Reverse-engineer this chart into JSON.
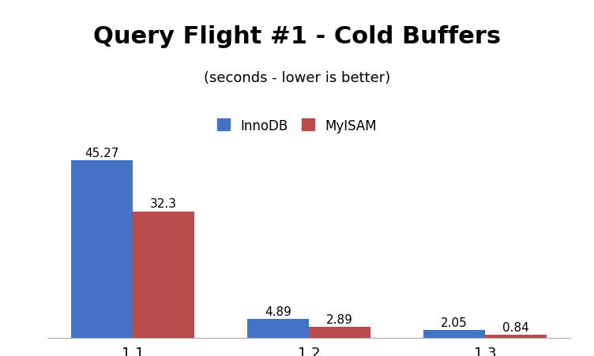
{
  "title": "Query Flight #1 - Cold Buffers",
  "subtitle": "(seconds - lower is better)",
  "categories": [
    "1.1",
    "1.2",
    "1.3"
  ],
  "innodb_values": [
    45.27,
    4.89,
    2.05
  ],
  "myisam_values": [
    32.3,
    2.89,
    0.84
  ],
  "innodb_color": "#4472C4",
  "myisam_color": "#B84B4B",
  "legend_labels": [
    "InnoDB",
    "MyISAM"
  ],
  "bar_width": 0.35,
  "ylim": [
    0,
    50
  ],
  "background_color": "#FFFFFF",
  "title_fontsize": 22,
  "subtitle_fontsize": 13,
  "label_fontsize": 11,
  "tick_fontsize": 13,
  "legend_fontsize": 12
}
